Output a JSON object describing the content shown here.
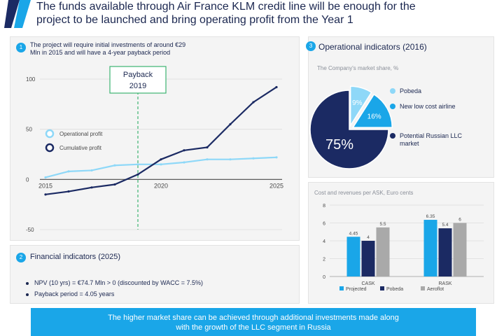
{
  "header": {
    "headline_line1": "The funds available through Air France KLM credit line will be enough for the",
    "headline_line2": "project to be launched and bring operating profit from the Year 1"
  },
  "left_panel": {
    "badge": "1",
    "title_line1": "The project will require initial investments of around €29",
    "title_line2": "Mln in 2015 and will have a 4-year payback period",
    "payback_label_line1": "Payback",
    "payback_label_line2": "2019"
  },
  "financial": {
    "badge": "2",
    "title": "Financial indicators (2025)",
    "bullets": [
      "NPV (10 yrs) = €74.7 Mln > 0 (discounted by WACC = 7.5%)",
      "Payback period = 4.05 years"
    ]
  },
  "operational": {
    "badge": "3",
    "title": "Operational indicators (2016)",
    "subtitle": "The Company's market share, %"
  },
  "cost_panel": {
    "subtitle": "Cost and revenues per ASK, Euro cents"
  },
  "footer": {
    "line1": "The higher market share can be achieved through additional investments made along",
    "line2": "with the growth of the LLC segment in Russia"
  },
  "colors": {
    "accent_blue": "#1aa6e8",
    "light_blue": "#8ed8f8",
    "navy": "#1b2a63",
    "gray": "#a9a9a9",
    "payback_green": "#3cb371"
  },
  "chart_data": [
    {
      "type": "line",
      "x": [
        2015,
        2016,
        2017,
        2018,
        2019,
        2020,
        2021,
        2022,
        2023,
        2024,
        2025
      ],
      "x_tick_labels": [
        "2015",
        "2020",
        "2025"
      ],
      "y_tick_labels": [
        "100",
        "50",
        "0",
        "-50"
      ],
      "ylim": [
        -50,
        100
      ],
      "series": [
        {
          "name": "Operational profit",
          "values": [
            2,
            8,
            9,
            14,
            15,
            15,
            17,
            20,
            20,
            21,
            22
          ]
        },
        {
          "name": "Cumulative profit",
          "values": [
            -15,
            -12,
            -8,
            -5,
            5,
            20,
            29,
            32,
            55,
            77,
            92
          ]
        }
      ],
      "legend_position": "left"
    },
    {
      "type": "pie",
      "labels": [
        "Pobeda",
        "New low cost airline",
        "Potential Russian LLC market"
      ],
      "values": [
        9,
        16,
        75
      ],
      "slice_labels": [
        "9%",
        "16%",
        "75%"
      ]
    },
    {
      "type": "bar",
      "categories": [
        "CASK",
        "RASK"
      ],
      "series": [
        {
          "name": "Projected",
          "values": [
            4.45,
            6.35
          ],
          "labels": [
            "4.45",
            "6.35"
          ]
        },
        {
          "name": "Pobeda",
          "values": [
            4.0,
            5.4
          ],
          "labels": [
            "4",
            "5.4"
          ]
        },
        {
          "name": "Aeroflot",
          "values": [
            5.5,
            6.0
          ],
          "labels": [
            "5.5",
            "6"
          ]
        }
      ],
      "y_tick_labels": [
        "8",
        "6",
        "4",
        "2",
        "0"
      ],
      "ylim": [
        0,
        8
      ],
      "legend_position": "bottom"
    }
  ]
}
